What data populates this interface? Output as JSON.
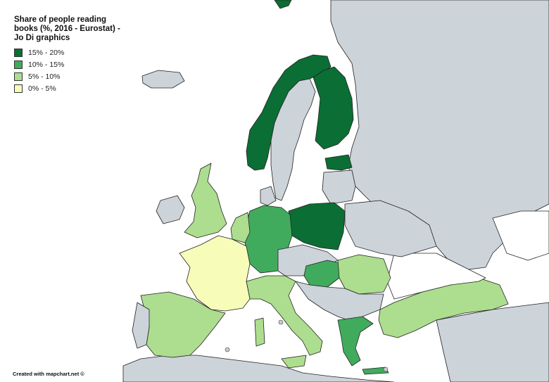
{
  "legend": {
    "title": "Share of people reading books (%, 2016 - Eurostat) - Jo Di graphics",
    "items": [
      {
        "label": "15% - 20%",
        "color": "#0b6e35"
      },
      {
        "label": "10% - 15%",
        "color": "#41ab5d"
      },
      {
        "label": "5% - 10%",
        "color": "#addd8e"
      },
      {
        "label": "0% - 5%",
        "color": "#f7fcb9"
      }
    ]
  },
  "credit": "Created with mapchart.net ©",
  "colors": {
    "no_data": "#ccd3d9",
    "not_included": "#ffffff",
    "border": "#222222"
  },
  "regions": [
    {
      "name": "norway",
      "class": "15% - 20%"
    },
    {
      "name": "finland",
      "class": "15% - 20%"
    },
    {
      "name": "estonia",
      "class": "15% - 20%"
    },
    {
      "name": "poland",
      "class": "15% - 20%"
    },
    {
      "name": "germany",
      "class": "10% - 15%"
    },
    {
      "name": "hungary",
      "class": "10% - 15%"
    },
    {
      "name": "greece",
      "class": "10% - 15%"
    },
    {
      "name": "united-kingdom",
      "class": "5% - 10%"
    },
    {
      "name": "spain",
      "class": "5% - 10%"
    },
    {
      "name": "italy",
      "class": "5% - 10%"
    },
    {
      "name": "romania",
      "class": "5% - 10%"
    },
    {
      "name": "turkey",
      "class": "5% - 10%"
    },
    {
      "name": "netherlands",
      "class": "5% - 10%"
    },
    {
      "name": "france",
      "class": "0% - 5%"
    }
  ]
}
